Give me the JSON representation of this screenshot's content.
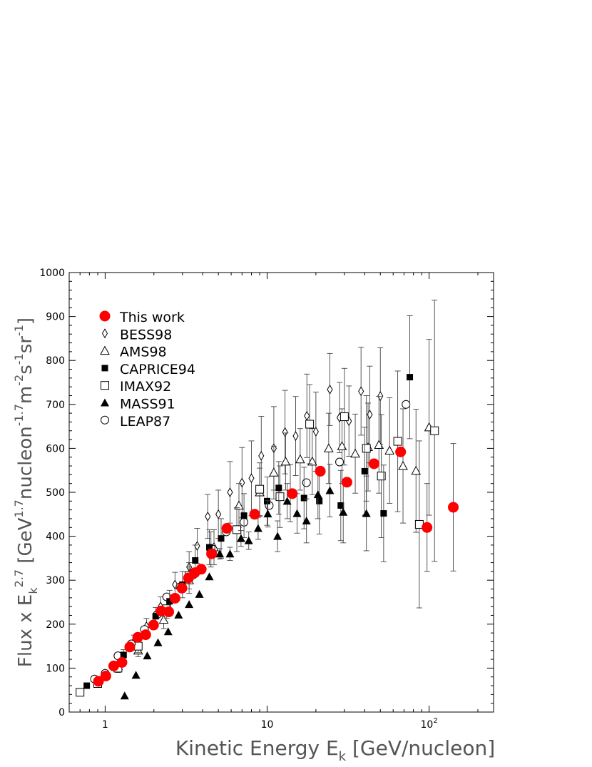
{
  "chart_data": {
    "type": "scatter",
    "xscale": "log",
    "xlim": [
      0.6,
      250
    ],
    "ylim": [
      0,
      1000
    ],
    "grid": false,
    "legend_placement": "top-left",
    "xlabel_parts": {
      "main": "Kinetic Energy E",
      "sub": "k",
      "unit": " [GeV/nucleon]"
    },
    "ylabel_parts": {
      "main": "Flux x E",
      "sub": "k",
      "sup": "2.7",
      "unit_a": " [GeV",
      "sup_a": "1.7",
      "unit_b": "nucleon",
      "sup_b": "-1.7",
      "unit_c": "m",
      "sup_c": "-2",
      "unit_d": "s",
      "sup_d": "-1",
      "unit_e": "sr",
      "sup_e": "-1",
      "unit_f": "]"
    },
    "y_ticks": [
      0,
      100,
      200,
      300,
      400,
      500,
      600,
      700,
      800,
      900,
      1000
    ],
    "x_ticks": [
      {
        "value": 1,
        "label": "1",
        "sup": ""
      },
      {
        "value": 10,
        "label": "10",
        "sup": ""
      },
      {
        "value": 100,
        "label": "10",
        "sup": "2"
      }
    ],
    "series": [
      {
        "name": "This work",
        "marker": "filled-circle",
        "color": "#ff0000",
        "points": [
          {
            "x": 0.91,
            "y": 70,
            "err": 0
          },
          {
            "x": 1.01,
            "y": 82,
            "err": 0
          },
          {
            "x": 1.13,
            "y": 105,
            "err": 0
          },
          {
            "x": 1.27,
            "y": 113,
            "err": 0
          },
          {
            "x": 1.42,
            "y": 148,
            "err": 0
          },
          {
            "x": 1.59,
            "y": 170,
            "err": 0
          },
          {
            "x": 1.78,
            "y": 176,
            "err": 0
          },
          {
            "x": 1.99,
            "y": 198,
            "err": 0
          },
          {
            "x": 2.22,
            "y": 230,
            "err": 0
          },
          {
            "x": 2.47,
            "y": 228,
            "err": 0
          },
          {
            "x": 2.7,
            "y": 259,
            "err": 0
          },
          {
            "x": 2.98,
            "y": 282,
            "err": 0
          },
          {
            "x": 3.27,
            "y": 305,
            "err": 0
          },
          {
            "x": 3.57,
            "y": 317,
            "err": 0
          },
          {
            "x": 3.92,
            "y": 325,
            "err": 0
          },
          {
            "x": 4.54,
            "y": 360,
            "err": 0
          },
          {
            "x": 5.65,
            "y": 418,
            "err": 0
          },
          {
            "x": 8.38,
            "y": 450,
            "err": 0
          },
          {
            "x": 14.3,
            "y": 497,
            "err": 0
          },
          {
            "x": 21.3,
            "y": 548,
            "err": 0
          },
          {
            "x": 31.1,
            "y": 523,
            "err": 0
          },
          {
            "x": 45.7,
            "y": 565,
            "err": 0
          },
          {
            "x": 66.7,
            "y": 592,
            "err": 0
          },
          {
            "x": 97.1,
            "y": 420,
            "err": 100
          },
          {
            "x": 141,
            "y": 466,
            "err": 145
          }
        ]
      },
      {
        "name": "BESS98",
        "marker": "open-diamond",
        "color": "#000000",
        "points": [
          {
            "x": 1.5,
            "y": 160,
            "err": 15
          },
          {
            "x": 1.8,
            "y": 195,
            "err": 18
          },
          {
            "x": 2.2,
            "y": 240,
            "err": 22
          },
          {
            "x": 2.7,
            "y": 290,
            "err": 28
          },
          {
            "x": 3.3,
            "y": 330,
            "err": 35
          },
          {
            "x": 3.7,
            "y": 378,
            "err": 40
          },
          {
            "x": 4.3,
            "y": 445,
            "err": 50
          },
          {
            "x": 5.0,
            "y": 450,
            "err": 55
          },
          {
            "x": 5.9,
            "y": 500,
            "err": 70
          },
          {
            "x": 7.0,
            "y": 522,
            "err": 80
          },
          {
            "x": 8.0,
            "y": 532,
            "err": 85
          },
          {
            "x": 9.2,
            "y": 583,
            "err": 90
          },
          {
            "x": 11.0,
            "y": 600,
            "err": 95
          },
          {
            "x": 12.9,
            "y": 637,
            "err": 95
          },
          {
            "x": 15.0,
            "y": 628,
            "err": 90
          },
          {
            "x": 17.6,
            "y": 674,
            "err": 95
          },
          {
            "x": 20.0,
            "y": 638,
            "err": 90
          },
          {
            "x": 24.4,
            "y": 734,
            "err": 82
          },
          {
            "x": 28.0,
            "y": 670,
            "err": 80
          },
          {
            "x": 32.0,
            "y": 662,
            "err": 80
          },
          {
            "x": 38.0,
            "y": 730,
            "err": 100
          },
          {
            "x": 43.0,
            "y": 677,
            "err": 110
          },
          {
            "x": 50.0,
            "y": 719,
            "err": 110
          }
        ]
      },
      {
        "name": "AMS98",
        "marker": "open-triangle",
        "color": "#000000",
        "points": [
          {
            "x": 1.2,
            "y": 105,
            "err": 10
          },
          {
            "x": 1.6,
            "y": 140,
            "err": 14
          },
          {
            "x": 2.3,
            "y": 210,
            "err": 20
          },
          {
            "x": 3.3,
            "y": 300,
            "err": 30
          },
          {
            "x": 4.7,
            "y": 375,
            "err": 40
          },
          {
            "x": 6.7,
            "y": 470,
            "err": 50
          },
          {
            "x": 9.0,
            "y": 500,
            "err": 55
          },
          {
            "x": 11.0,
            "y": 545,
            "err": 60
          },
          {
            "x": 13.0,
            "y": 570,
            "err": 65
          },
          {
            "x": 16.0,
            "y": 575,
            "err": 70
          },
          {
            "x": 19.0,
            "y": 570,
            "err": 75
          },
          {
            "x": 24.0,
            "y": 600,
            "err": 80
          },
          {
            "x": 29.0,
            "y": 605,
            "err": 85
          },
          {
            "x": 35.0,
            "y": 588,
            "err": 90
          },
          {
            "x": 42.0,
            "y": 603,
            "err": 100
          },
          {
            "x": 49.0,
            "y": 608,
            "err": 110
          },
          {
            "x": 57.0,
            "y": 595,
            "err": 120
          },
          {
            "x": 69.0,
            "y": 560,
            "err": 130
          },
          {
            "x": 83.0,
            "y": 549,
            "err": 140
          },
          {
            "x": 100.0,
            "y": 648,
            "err": 200
          }
        ]
      },
      {
        "name": "CAPRICE94",
        "marker": "filled-square",
        "color": "#000000",
        "points": [
          {
            "x": 0.77,
            "y": 60,
            "err": 5
          },
          {
            "x": 1.3,
            "y": 130,
            "err": 12
          },
          {
            "x": 2.05,
            "y": 218,
            "err": 20
          },
          {
            "x": 2.5,
            "y": 252,
            "err": 25
          },
          {
            "x": 3.0,
            "y": 290,
            "err": 30
          },
          {
            "x": 3.6,
            "y": 345,
            "err": 35
          },
          {
            "x": 4.4,
            "y": 375,
            "err": 40
          },
          {
            "x": 5.2,
            "y": 395,
            "err": 45
          },
          {
            "x": 7.2,
            "y": 447,
            "err": 50
          },
          {
            "x": 10.0,
            "y": 480,
            "err": 55
          },
          {
            "x": 11.8,
            "y": 510,
            "err": 60
          },
          {
            "x": 13.9,
            "y": 498,
            "err": 65
          },
          {
            "x": 16.9,
            "y": 487,
            "err": 70
          },
          {
            "x": 21.0,
            "y": 480,
            "err": 75
          },
          {
            "x": 28.5,
            "y": 470,
            "err": 80
          },
          {
            "x": 40.0,
            "y": 548,
            "err": 100
          },
          {
            "x": 52.4,
            "y": 452,
            "err": 110
          },
          {
            "x": 76.0,
            "y": 762,
            "err": 140
          }
        ]
      },
      {
        "name": "IMAX92",
        "marker": "open-square",
        "color": "#000000",
        "points": [
          {
            "x": 0.7,
            "y": 45,
            "err": 4
          },
          {
            "x": 0.9,
            "y": 65,
            "err": 6
          },
          {
            "x": 1.2,
            "y": 100,
            "err": 10
          },
          {
            "x": 1.6,
            "y": 150,
            "err": 15
          },
          {
            "x": 2.4,
            "y": 235,
            "err": 22
          },
          {
            "x": 3.3,
            "y": 310,
            "err": 30
          },
          {
            "x": 4.5,
            "y": 370,
            "err": 40
          },
          {
            "x": 6.5,
            "y": 415,
            "err": 50
          },
          {
            "x": 9.0,
            "y": 507,
            "err": 60
          },
          {
            "x": 12.0,
            "y": 490,
            "err": 70
          },
          {
            "x": 18.3,
            "y": 655,
            "err": 90
          },
          {
            "x": 30.0,
            "y": 672,
            "err": 110
          },
          {
            "x": 41.0,
            "y": 600,
            "err": 120
          },
          {
            "x": 50.7,
            "y": 537,
            "err": 140
          },
          {
            "x": 64.0,
            "y": 616,
            "err": 160
          },
          {
            "x": 87.0,
            "y": 427,
            "err": 190
          },
          {
            "x": 108.0,
            "y": 640,
            "err": 297
          }
        ]
      },
      {
        "name": "MASS91",
        "marker": "filled-triangle",
        "color": "#000000",
        "points": [
          {
            "x": 1.32,
            "y": 37,
            "err": 0
          },
          {
            "x": 1.55,
            "y": 84,
            "err": 0
          },
          {
            "x": 1.82,
            "y": 128,
            "err": 0
          },
          {
            "x": 2.12,
            "y": 158,
            "err": 0
          },
          {
            "x": 2.45,
            "y": 183,
            "err": 0
          },
          {
            "x": 2.84,
            "y": 221,
            "err": 0
          },
          {
            "x": 3.3,
            "y": 245,
            "err": 0
          },
          {
            "x": 3.82,
            "y": 268,
            "err": 0
          },
          {
            "x": 4.4,
            "y": 308,
            "err": 0
          },
          {
            "x": 5.1,
            "y": 360,
            "err": 12
          },
          {
            "x": 5.9,
            "y": 360,
            "err": 15
          },
          {
            "x": 6.9,
            "y": 395,
            "err": 18
          },
          {
            "x": 7.7,
            "y": 390,
            "err": 20
          },
          {
            "x": 8.8,
            "y": 418,
            "err": 25
          },
          {
            "x": 10.1,
            "y": 451,
            "err": 30
          },
          {
            "x": 11.6,
            "y": 400,
            "err": 35
          },
          {
            "x": 13.3,
            "y": 480,
            "err": 40
          },
          {
            "x": 15.3,
            "y": 452,
            "err": 45
          },
          {
            "x": 17.5,
            "y": 435,
            "err": 50
          },
          {
            "x": 20.6,
            "y": 495,
            "err": 55
          },
          {
            "x": 24.4,
            "y": 504,
            "err": 60
          },
          {
            "x": 29.5,
            "y": 455,
            "err": 70
          },
          {
            "x": 41.0,
            "y": 452,
            "err": 85
          }
        ]
      },
      {
        "name": "LEAP87",
        "marker": "open-circle",
        "color": "#000000",
        "points": [
          {
            "x": 0.86,
            "y": 75,
            "err": 0
          },
          {
            "x": 1.0,
            "y": 88,
            "err": 0
          },
          {
            "x": 1.2,
            "y": 128,
            "err": 0
          },
          {
            "x": 1.45,
            "y": 155,
            "err": 0
          },
          {
            "x": 1.75,
            "y": 188,
            "err": 0
          },
          {
            "x": 2.1,
            "y": 222,
            "err": 0
          },
          {
            "x": 2.4,
            "y": 262,
            "err": 0
          },
          {
            "x": 2.9,
            "y": 285,
            "err": 0
          },
          {
            "x": 3.5,
            "y": 312,
            "err": 0
          },
          {
            "x": 4.6,
            "y": 362,
            "err": 0
          },
          {
            "x": 5.6,
            "y": 410,
            "err": 0
          },
          {
            "x": 7.2,
            "y": 432,
            "err": 0
          },
          {
            "x": 10.3,
            "y": 470,
            "err": 0
          },
          {
            "x": 17.5,
            "y": 522,
            "err": 0
          },
          {
            "x": 28.0,
            "y": 569,
            "err": 0
          },
          {
            "x": 72.0,
            "y": 700,
            "err": 0
          }
        ]
      }
    ]
  }
}
